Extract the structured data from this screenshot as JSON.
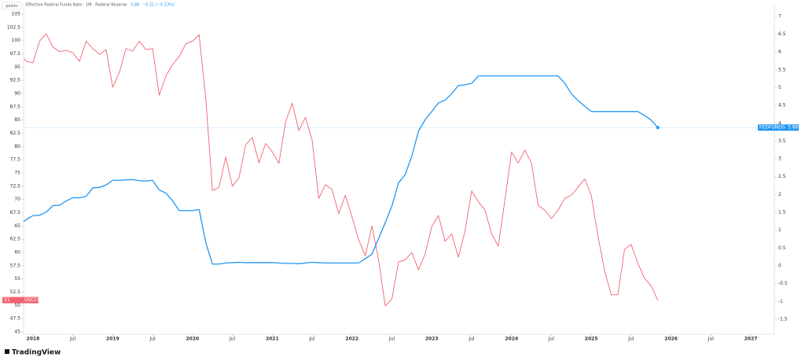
{
  "chart_data": {
    "type": "line",
    "title": "Effective Federal Funds Rate · 1M · Federal Reserve",
    "header_change": "−0.21 (−5.13%)",
    "y_unit_label": "points",
    "footer": "TradingView",
    "x": [
      "2017-11",
      "2017-12",
      "2018-01",
      "2018-02",
      "2018-03",
      "2018-04",
      "2018-05",
      "2018-06",
      "2018-07",
      "2018-08",
      "2018-09",
      "2018-10",
      "2018-11",
      "2018-12",
      "2019-01",
      "2019-02",
      "2019-03",
      "2019-04",
      "2019-05",
      "2019-06",
      "2019-07",
      "2019-08",
      "2019-09",
      "2019-10",
      "2019-11",
      "2019-12",
      "2020-01",
      "2020-02",
      "2020-03",
      "2020-04",
      "2020-05",
      "2020-06",
      "2020-07",
      "2020-08",
      "2020-09",
      "2020-10",
      "2020-11",
      "2020-12",
      "2021-01",
      "2021-02",
      "2021-03",
      "2021-04",
      "2021-05",
      "2021-06",
      "2021-07",
      "2021-08",
      "2021-09",
      "2021-10",
      "2021-11",
      "2021-12",
      "2022-01",
      "2022-02",
      "2022-03",
      "2022-04",
      "2022-05",
      "2022-06",
      "2022-07",
      "2022-08",
      "2022-09",
      "2022-10",
      "2022-11",
      "2022-12",
      "2023-01",
      "2023-02",
      "2023-03",
      "2023-04",
      "2023-05",
      "2023-06",
      "2023-07",
      "2023-08",
      "2023-09",
      "2023-10",
      "2023-11",
      "2023-12",
      "2024-01",
      "2024-02",
      "2024-03",
      "2024-04",
      "2024-05",
      "2024-06",
      "2024-07",
      "2024-08",
      "2024-09",
      "2024-10",
      "2024-11",
      "2024-12",
      "2025-01",
      "2025-02",
      "2025-03",
      "2025-04",
      "2025-05",
      "2025-06",
      "2025-07",
      "2025-08",
      "2025-09",
      "2025-10",
      "2025-11"
    ],
    "series": [
      {
        "name": "USCCI",
        "color": "#f06370",
        "axis": "y",
        "values": [
          97.6,
          96.1,
          95.8,
          99.9,
          101.3,
          98.8,
          97.9,
          98.2,
          97.7,
          96.1,
          99.9,
          98.5,
          97.4,
          98.3,
          91.2,
          94.0,
          98.5,
          98.0,
          99.9,
          98.3,
          98.5,
          89.7,
          93.3,
          95.5,
          97.0,
          99.4,
          99.9,
          101.1,
          89.1,
          71.7,
          72.3,
          78.0,
          72.5,
          74.1,
          80.3,
          81.7,
          76.9,
          80.6,
          79.0,
          76.8,
          84.6,
          88.2,
          83.0,
          85.5,
          81.2,
          70.2,
          72.8,
          71.9,
          67.3,
          70.8,
          66.7,
          62.4,
          59.4,
          65.0,
          58.6,
          49.9,
          51.2,
          58.2,
          58.6,
          60.0,
          56.7,
          59.7,
          64.9,
          67.0,
          62.1,
          63.5,
          59.1,
          64.0,
          71.6,
          69.6,
          68.0,
          63.5,
          61.2,
          69.8,
          79.0,
          76.9,
          79.3,
          76.9,
          68.9,
          68.0,
          66.4,
          68.0,
          70.2,
          70.8,
          72.3,
          73.9,
          70.8,
          63.1,
          56.6,
          52.0,
          52.0,
          60.6,
          61.5,
          58.0,
          55.1,
          53.7,
          51
        ]
      },
      {
        "name": "FEDFUNDS",
        "color": "#2196f3",
        "axis": "y2",
        "values": [
          1.16,
          1.3,
          1.41,
          1.42,
          1.51,
          1.69,
          1.7,
          1.82,
          1.91,
          1.91,
          1.95,
          2.19,
          2.2,
          2.27,
          2.4,
          2.4,
          2.41,
          2.42,
          2.39,
          2.38,
          2.4,
          2.13,
          2.04,
          1.83,
          1.55,
          1.55,
          1.55,
          1.58,
          0.65,
          0.05,
          0.05,
          0.08,
          0.09,
          0.1,
          0.09,
          0.09,
          0.09,
          0.09,
          0.09,
          0.08,
          0.07,
          0.07,
          0.06,
          0.08,
          0.1,
          0.09,
          0.08,
          0.08,
          0.08,
          0.08,
          0.08,
          0.08,
          0.2,
          0.33,
          0.77,
          1.21,
          1.68,
          2.33,
          2.56,
          3.08,
          3.78,
          4.1,
          4.33,
          4.57,
          4.65,
          4.83,
          5.06,
          5.08,
          5.12,
          5.33,
          5.33,
          5.33,
          5.33,
          5.33,
          5.33,
          5.33,
          5.33,
          5.33,
          5.33,
          5.33,
          5.33,
          5.33,
          5.13,
          4.83,
          4.64,
          4.48,
          4.33,
          4.33,
          4.33,
          4.33,
          4.33,
          4.33,
          4.33,
          4.33,
          4.22,
          4.09,
          3.88
        ]
      }
    ],
    "xlim": [
      "2017-11",
      "2027-03"
    ],
    "xticks": [
      {
        "value": "2018-01",
        "label": "2018"
      },
      {
        "value": "2018-07",
        "label": "Jul"
      },
      {
        "value": "2019-01",
        "label": "2019"
      },
      {
        "value": "2019-07",
        "label": "Jul"
      },
      {
        "value": "2020-01",
        "label": "2020"
      },
      {
        "value": "2020-07",
        "label": "Jul"
      },
      {
        "value": "2021-01",
        "label": "2021"
      },
      {
        "value": "2021-07",
        "label": "Jul"
      },
      {
        "value": "2022-01",
        "label": "2022"
      },
      {
        "value": "2022-07",
        "label": "Jul"
      },
      {
        "value": "2023-01",
        "label": "2023"
      },
      {
        "value": "2023-07",
        "label": "Jul"
      },
      {
        "value": "2024-01",
        "label": "2024"
      },
      {
        "value": "2024-07",
        "label": "Jul"
      },
      {
        "value": "2025-01",
        "label": "2025"
      },
      {
        "value": "2025-07",
        "label": "Jul"
      },
      {
        "value": "2026-01",
        "label": "2026"
      },
      {
        "value": "2026-07",
        "label": "Jul"
      },
      {
        "value": "2027-01",
        "label": "2027"
      }
    ],
    "ylim": [
      44.55,
      106.93
    ],
    "yticks": [
      45,
      47.5,
      50,
      52.5,
      55,
      57.5,
      60,
      62.5,
      65,
      67.5,
      70,
      72.5,
      75,
      77.5,
      80,
      82.5,
      85,
      87.5,
      90,
      92.5,
      95,
      97.5,
      100,
      102.5,
      105
    ],
    "y2lim": [
      -1.92,
      7.35
    ],
    "y2ticks": [
      -1.5,
      -1,
      -0.5,
      0,
      0.5,
      1,
      1.5,
      2,
      2.5,
      3,
      3.5,
      4,
      4.5,
      5,
      5.5,
      6,
      6.5,
      7
    ],
    "grid": false
  }
}
